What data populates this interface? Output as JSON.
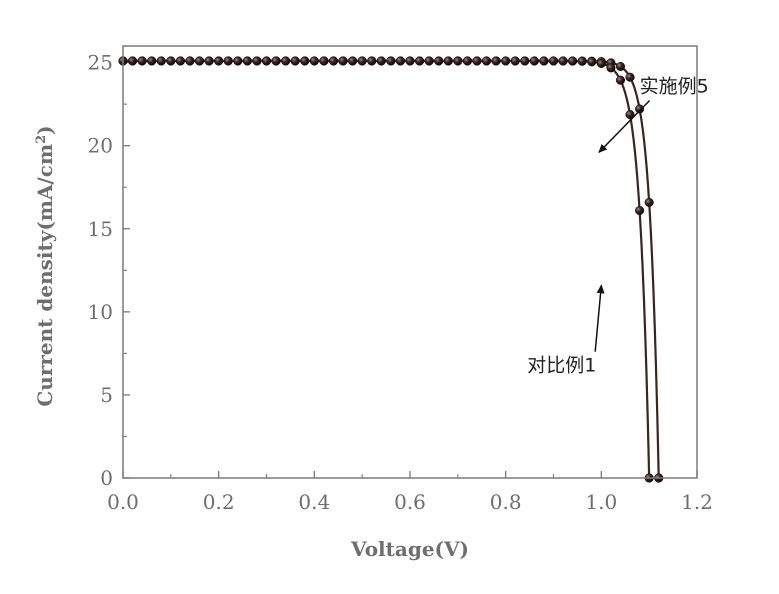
{
  "chart_data": {
    "type": "scatter",
    "title": "",
    "xlabel": "Voltage(V)",
    "ylabel_main": "Current density(mA/cm",
    "ylabel_sup": "2",
    "ylabel_end": ")",
    "xlim": [
      0,
      1.2
    ],
    "ylim": [
      0,
      26
    ],
    "xticks": [
      0.0,
      0.2,
      0.4,
      0.6,
      0.8,
      1.0,
      1.2
    ],
    "xtick_labels": [
      "0.0",
      "0.2",
      "0.4",
      "0.6",
      "0.8",
      "1.0",
      "1.2"
    ],
    "yticks": [
      0,
      5,
      10,
      15,
      20,
      25
    ],
    "ytick_labels": [
      "0",
      "5",
      "10",
      "15",
      "20",
      "25"
    ],
    "grid": false,
    "series": [
      {
        "jsc": 25.1,
        "voc": 1.12,
        "knee": 0.0185,
        "step": 0.02,
        "label_pos": [
          1.08,
          23.2
        ],
        "arrow_to": [
          0.995,
          19.6
        ],
        "label_text": "实施例5",
        "color": "#3a2424"
      },
      {
        "jsc": 25.1,
        "voc": 1.1,
        "knee": 0.0195,
        "step": 0.02,
        "label_pos": [
          0.845,
          6.4
        ],
        "arrow_to": [
          1.0,
          11.6
        ],
        "label_text": "对比例1",
        "color": "#3a2424"
      }
    ]
  }
}
